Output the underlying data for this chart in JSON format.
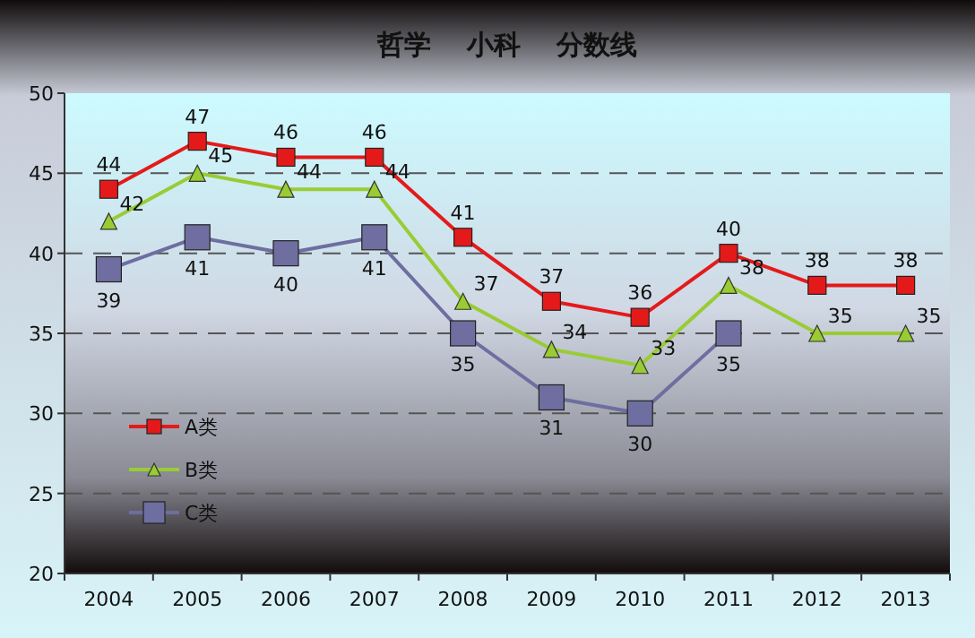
{
  "chart_data": {
    "type": "line",
    "title": "哲学　 小科　 分数线",
    "categories": [
      "2004",
      "2005",
      "2006",
      "2007",
      "2008",
      "2009",
      "2010",
      "2011",
      "2012",
      "2013"
    ],
    "series": [
      {
        "name": "A类",
        "color": "#e41a1a",
        "marker": "square",
        "values": [
          44,
          47,
          46,
          46,
          41,
          37,
          36,
          40,
          38,
          38
        ]
      },
      {
        "name": "B类",
        "color": "#99cc33",
        "marker": "triangle",
        "values": [
          42,
          45,
          44,
          44,
          37,
          34,
          33,
          38,
          35,
          35
        ]
      },
      {
        "name": "C类",
        "color": "#6e6ea0",
        "marker": "square",
        "values": [
          39,
          41,
          40,
          41,
          35,
          31,
          30,
          35,
          null,
          null
        ]
      }
    ],
    "ylim": [
      20,
      50
    ],
    "yticks": [
      20,
      25,
      30,
      35,
      40,
      45,
      50
    ],
    "grid": "y",
    "legend": "bottom left",
    "data_labels": true,
    "line_style": "solid"
  }
}
